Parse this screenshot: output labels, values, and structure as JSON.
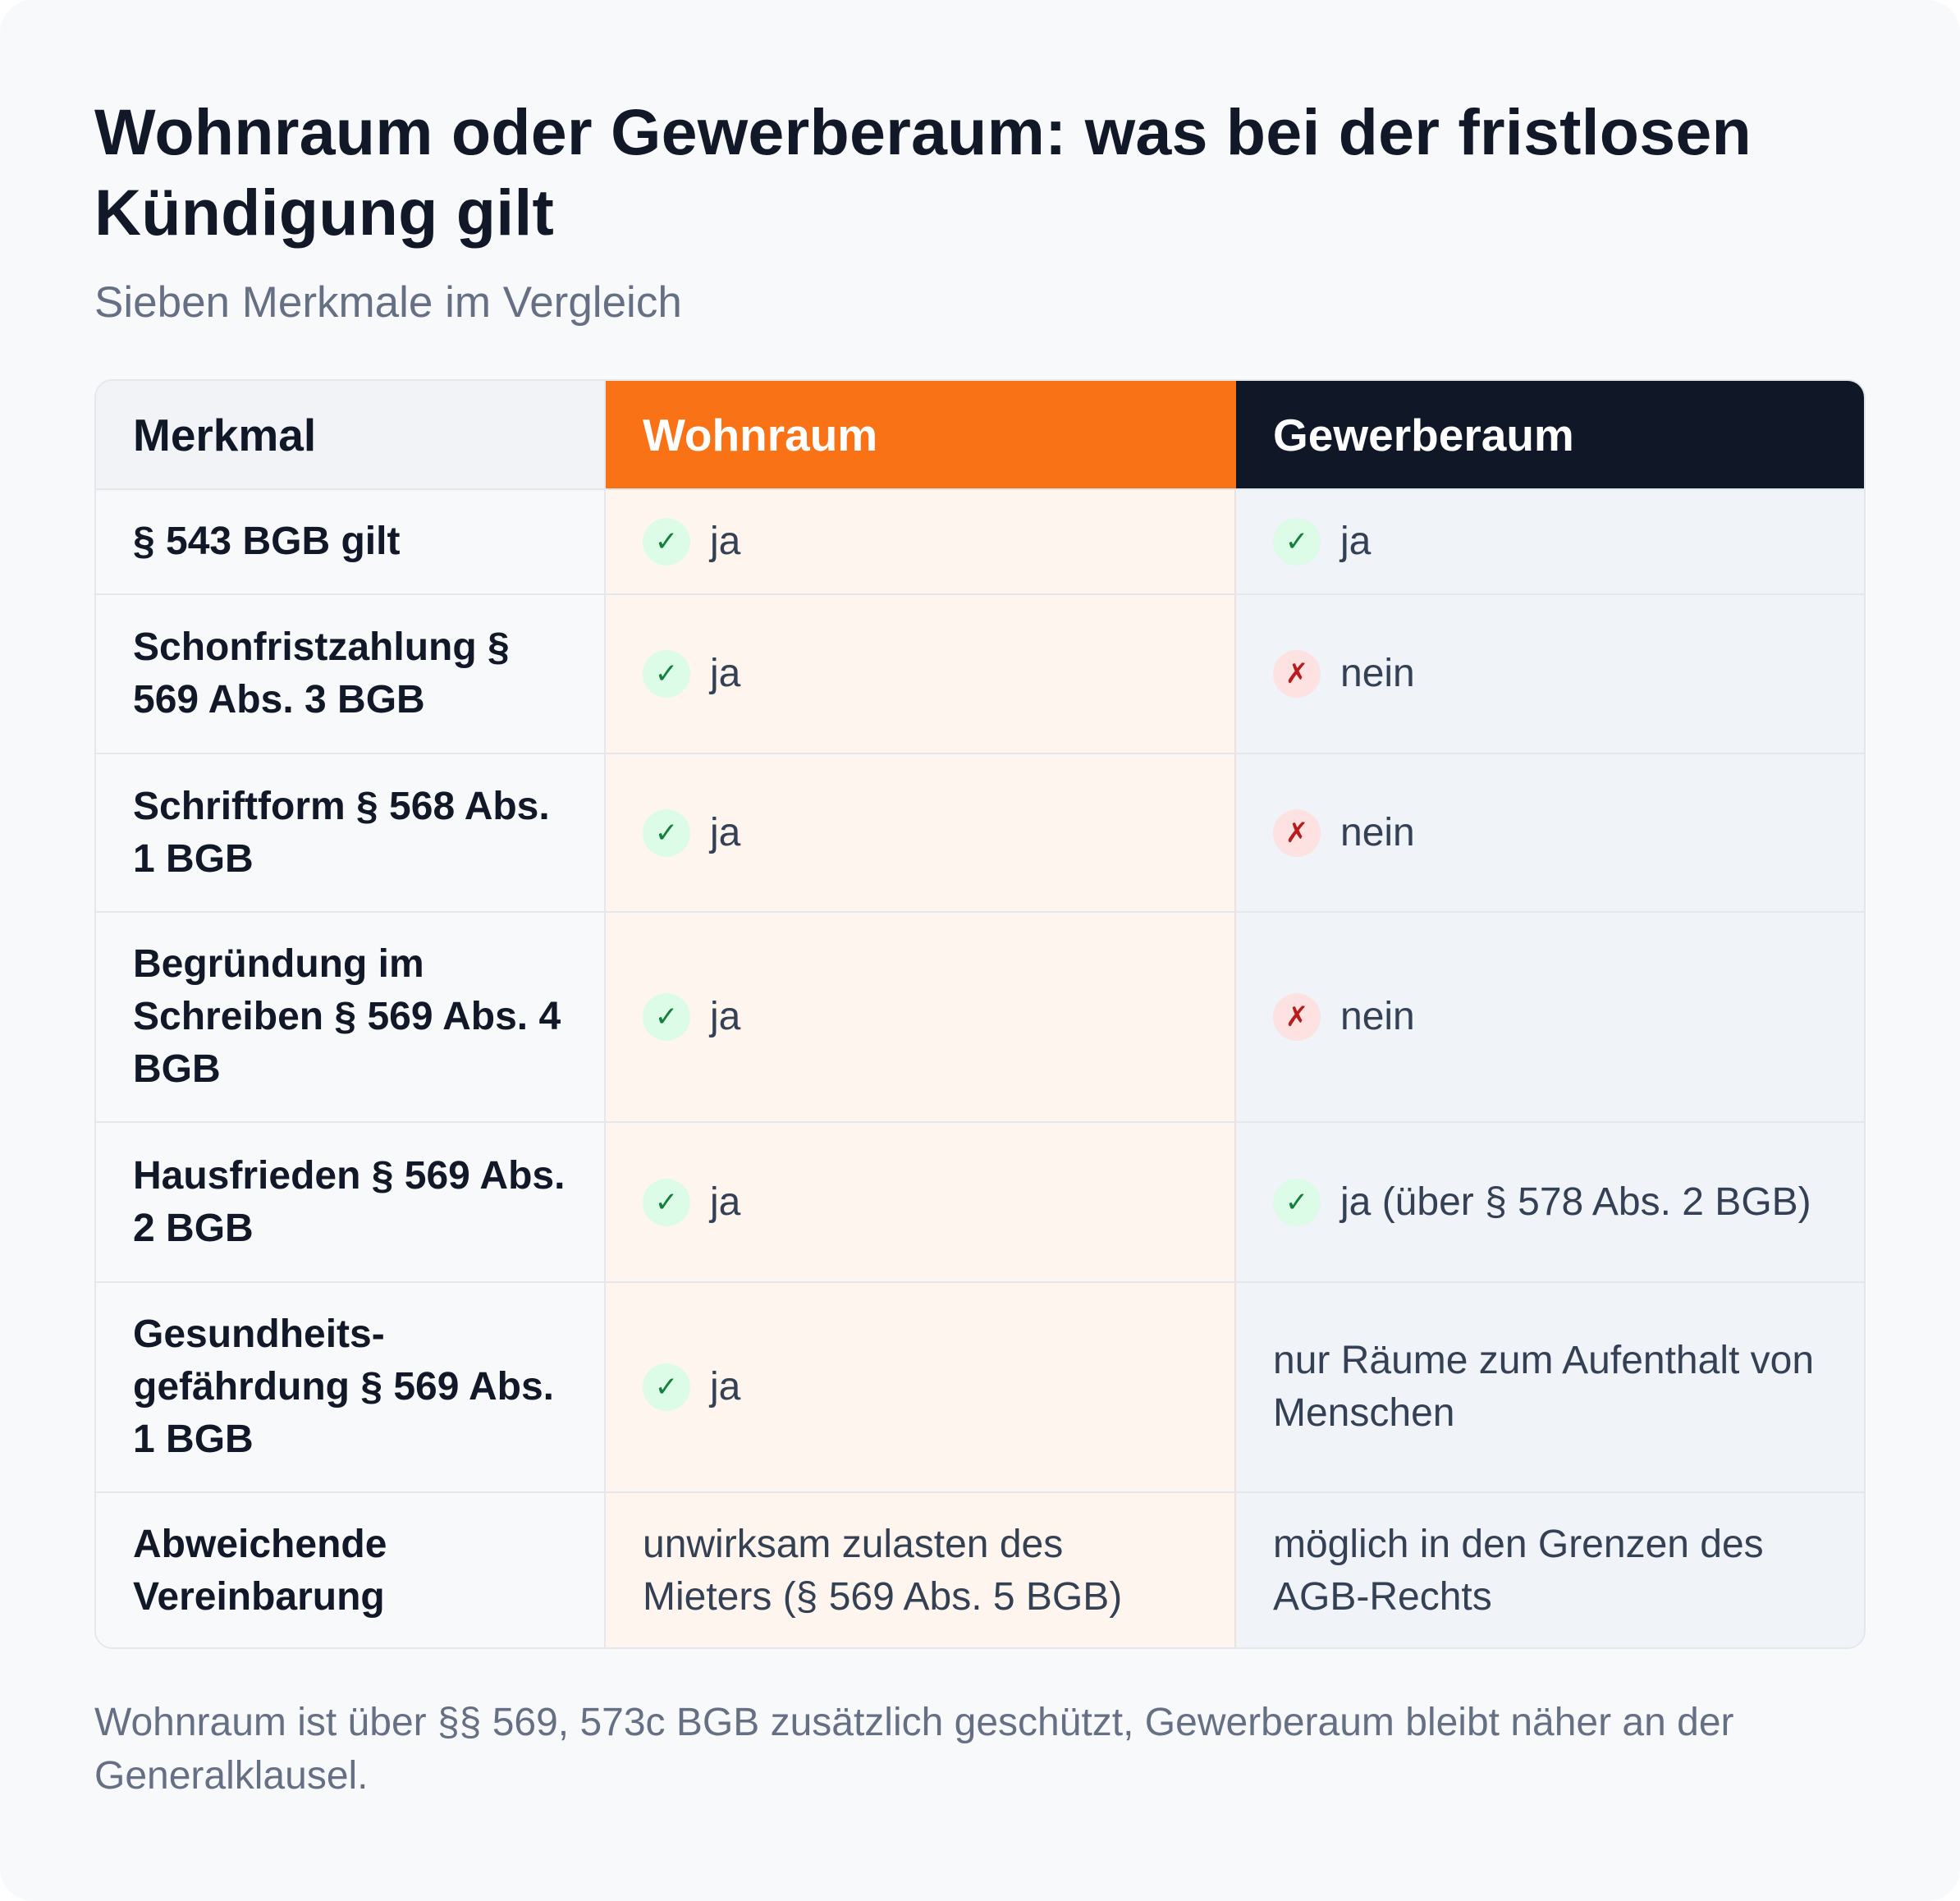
{
  "title": "Wohnraum oder Gewerberaum: was bei der fristlosen Kündigung gilt",
  "subtitle": "Sieben Merkmale im Vergleich",
  "table": {
    "headers": [
      "Merkmal",
      "Wohnraum",
      "Gewerberaum"
    ],
    "header_colors": {
      "wohnraum": "#f97316",
      "gewerberaum": "#101828"
    },
    "rows": [
      {
        "feature": "§ 543 BGB gilt",
        "wohnraum": {
          "status": "yes",
          "icon": "check-icon",
          "text": "ja"
        },
        "gewerberaum": {
          "status": "yes",
          "icon": "check-icon",
          "text": "ja"
        }
      },
      {
        "feature": "Schonfristzahlung § 569 Abs. 3 BGB",
        "wohnraum": {
          "status": "yes",
          "icon": "check-icon",
          "text": "ja"
        },
        "gewerberaum": {
          "status": "no",
          "icon": "cross-icon",
          "text": "nein"
        }
      },
      {
        "feature": "Schriftform § 568 Abs. 1 BGB",
        "wohnraum": {
          "status": "yes",
          "icon": "check-icon",
          "text": "ja"
        },
        "gewerberaum": {
          "status": "no",
          "icon": "cross-icon",
          "text": "nein"
        }
      },
      {
        "feature": "Begründung im Schreiben § 569 Abs. 4 BGB",
        "wohnraum": {
          "status": "yes",
          "icon": "check-icon",
          "text": "ja"
        },
        "gewerberaum": {
          "status": "no",
          "icon": "cross-icon",
          "text": "nein"
        }
      },
      {
        "feature": "Hausfrieden § 569 Abs. 2 BGB",
        "wohnraum": {
          "status": "yes",
          "icon": "check-icon",
          "text": "ja"
        },
        "gewerberaum": {
          "status": "yes",
          "icon": "check-icon",
          "text": "ja (über § 578 Abs. 2 BGB)"
        }
      },
      {
        "feature": "Gesundheits-gefährdung § 569 Abs. 1 BGB",
        "wohnraum": {
          "status": "yes",
          "icon": "check-icon",
          "text": "ja"
        },
        "gewerberaum": {
          "status": "none",
          "icon": "",
          "text": "nur Räume zum Aufenthalt von Menschen"
        }
      },
      {
        "feature": "Abweichende Vereinbarung",
        "wohnraum": {
          "status": "none",
          "icon": "",
          "text": "unwirksam zulasten des Mieters (§ 569 Abs. 5 BGB)"
        },
        "gewerberaum": {
          "status": "none",
          "icon": "",
          "text": "möglich in den Grenzen des AGB-Rechts"
        }
      }
    ]
  },
  "footnote": "Wohnraum ist über §§ 569, 573c BGB zusätzlich geschützt, Gewerberaum bleibt näher an der Generalklausel."
}
